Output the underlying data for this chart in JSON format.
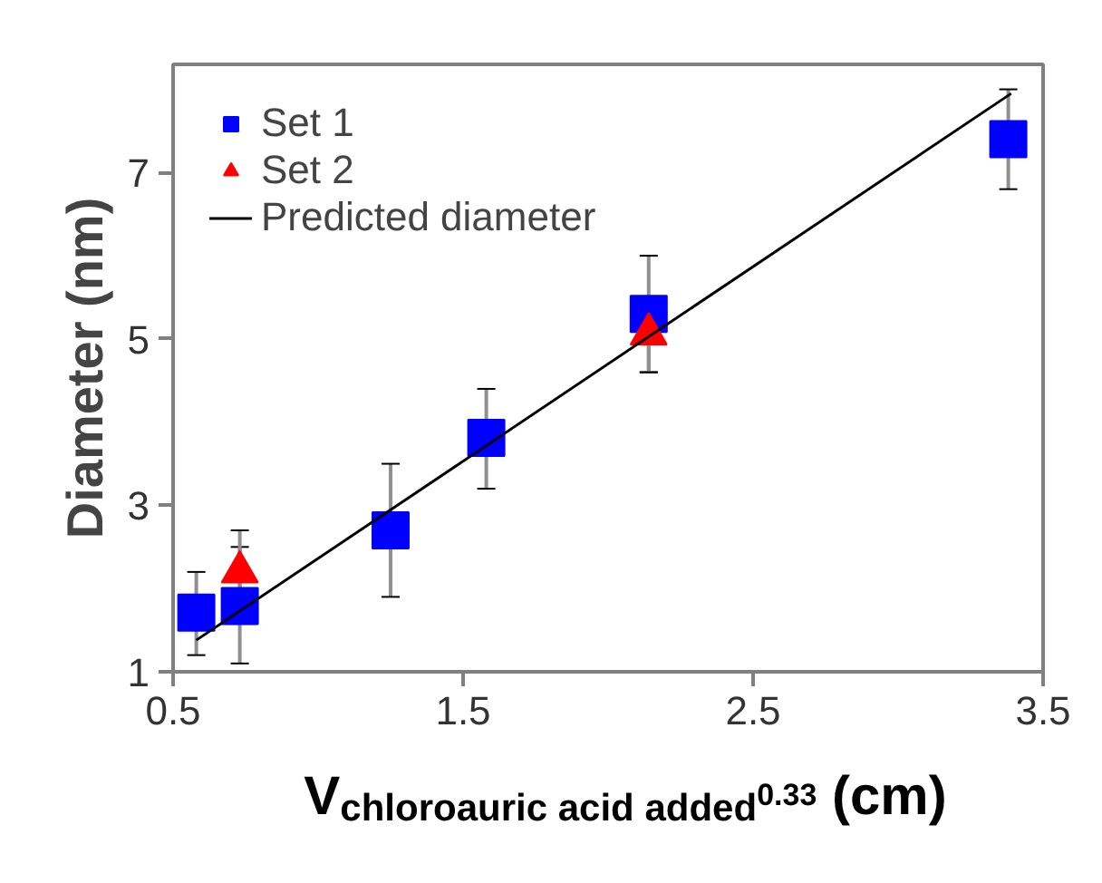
{
  "chart_data": {
    "type": "scatter",
    "xlabel": "V$_{chloroauric acid added}$$^{0.33}$ (cm)",
    "ylabel": "Diameter (nm)",
    "xlim": [
      0.5,
      3.5
    ],
    "xticks": [
      0.5,
      1.5,
      2.5,
      3.5
    ],
    "ylim": [
      1,
      8.3
    ],
    "yticks": [
      1,
      3,
      5,
      7
    ],
    "grid": false,
    "legend": "top left",
    "series": [
      {
        "name": "Set 1",
        "color": "#0000ff",
        "marker": "square",
        "x": [
          0.58,
          0.73,
          1.25,
          1.58,
          2.14,
          3.38
        ],
        "values": [
          1.71,
          1.79,
          2.7,
          3.81,
          5.3,
          7.4
        ],
        "errors": [
          [
            1.2,
            2.2
          ],
          [
            1.1,
            2.5
          ],
          [
            1.9,
            3.5
          ],
          [
            3.2,
            4.4
          ],
          [
            4.6,
            6.0
          ],
          [
            6.8,
            8.0
          ]
        ]
      },
      {
        "name": "Set 2",
        "color": "#ff0000",
        "marker": "triangle",
        "x": [
          0.73,
          2.14
        ],
        "values": [
          2.2,
          5.06
        ],
        "errors": [
          [
            1.7,
            2.7
          ],
          [
            4.6,
            5.5
          ]
        ]
      },
      {
        "name": "Predicted diameter",
        "type": "line",
        "color": "#000000",
        "marker": "none",
        "line_style": "solid",
        "x": [
          0.58,
          3.39
        ],
        "values": [
          1.38,
          7.95
        ]
      }
    ]
  }
}
